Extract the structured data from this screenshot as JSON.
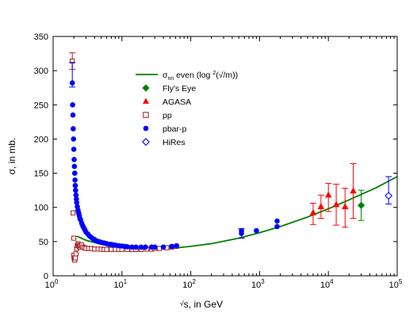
{
  "chart_data": {
    "type": "scatter",
    "x_scale": "log",
    "xlim": [
      1,
      100000
    ],
    "ylim": [
      0,
      350
    ],
    "x_ticks": [
      {
        "value": 1,
        "base": "10",
        "exp": "0"
      },
      {
        "value": 10,
        "base": "10",
        "exp": "1"
      },
      {
        "value": 100,
        "base": "10",
        "exp": "2"
      },
      {
        "value": 1000,
        "base": "10",
        "exp": "3"
      },
      {
        "value": 10000,
        "base": "10",
        "exp": "4"
      },
      {
        "value": 100000,
        "base": "10",
        "exp": "5"
      }
    ],
    "y_ticks": [
      0,
      50,
      100,
      150,
      200,
      250,
      300,
      350
    ],
    "xlabel": {
      "root": "√",
      "text": "s, in GeV"
    },
    "ylabel": "σ, in mb.",
    "grid": false,
    "legend_position": "top-center",
    "series": [
      {
        "name": "σₙₙ even (log ²(√/m))",
        "legend": {
          "sigma": "σ",
          "sub": "nn",
          "mid": " even (log ",
          "sup": "2",
          "end": "(√/m))"
        },
        "kind": "line",
        "color": "#008000",
        "x": [
          2.2,
          3,
          4,
          5,
          7,
          10,
          15,
          20,
          30,
          50,
          100,
          200,
          500,
          1000,
          2000,
          5000,
          10000,
          20000,
          50000,
          100000
        ],
        "y": [
          58,
          52,
          48.5,
          46,
          43,
          40.5,
          39.2,
          38.9,
          39,
          40,
          43,
          47,
          55,
          63,
          72,
          86,
          98,
          111,
          129,
          145
        ]
      },
      {
        "name": "Fly's Eye",
        "kind": "points",
        "marker": "diamond",
        "filled": true,
        "color": "#008000",
        "error_color": "#008000",
        "x": [
          30000
        ],
        "y": [
          103
        ],
        "yerr": [
          [
            22,
            22
          ]
        ]
      },
      {
        "name": "AGASA",
        "kind": "points",
        "marker": "triangle",
        "filled": true,
        "color": "#ff0000",
        "error_color": "#ff0000",
        "x": [
          6000,
          7800,
          10000,
          13000,
          17500,
          23000
        ],
        "y": [
          92,
          101,
          118,
          104,
          101,
          124
        ],
        "yerr": [
          [
            17,
            14
          ],
          [
            17,
            17
          ],
          [
            24,
            17
          ],
          [
            30,
            30
          ],
          [
            30,
            27
          ],
          [
            40,
            40
          ]
        ]
      },
      {
        "name": "pp",
        "kind": "points",
        "marker": "square",
        "filled": false,
        "color": "#a52a2a",
        "error_color": "#a52a2a",
        "x": [
          1.9,
          1.95,
          2.0,
          2.0,
          2.02,
          2.05,
          2.07,
          2.1,
          2.15,
          2.2,
          2.25,
          2.3,
          2.35,
          2.4,
          2.45,
          2.5,
          2.6,
          2.7,
          2.85,
          3.0,
          3.3,
          3.6,
          4.0,
          4.5,
          5.0,
          5.5,
          6.0,
          7.0,
          8.0,
          9.0,
          10.0,
          12.0,
          14.0,
          16.0,
          19.0,
          23.0,
          27.0,
          30.0,
          35.0,
          45.0,
          53.0,
          62.0
        ],
        "y": [
          314,
          92,
          55,
          30,
          26,
          24,
          23,
          26,
          32,
          40,
          44,
          47,
          45,
          43,
          42,
          44,
          45,
          42,
          41,
          40,
          40,
          40,
          39,
          39,
          39,
          38.5,
          38.5,
          38.5,
          38.5,
          38.5,
          38.5,
          38.5,
          38.5,
          38.5,
          38.5,
          39,
          39,
          40,
          40,
          41,
          42,
          43
        ],
        "yerr": [
          [
            12,
            12
          ]
        ]
      },
      {
        "name": "pbar-p",
        "kind": "points",
        "marker": "circle",
        "filled": true,
        "color": "#0000ff",
        "error_color": "#0000ff",
        "x": [
          1.9,
          1.92,
          1.94,
          1.96,
          1.98,
          2.0,
          2.02,
          2.04,
          2.06,
          2.08,
          2.1,
          2.12,
          2.15,
          2.18,
          2.2,
          2.25,
          2.3,
          2.35,
          2.4,
          2.45,
          2.5,
          2.6,
          2.7,
          2.8,
          2.9,
          3.0,
          3.2,
          3.4,
          3.6,
          3.8,
          4.0,
          4.3,
          4.6,
          5.0,
          5.5,
          6.0,
          6.5,
          7.0,
          7.5,
          8.0,
          9.0,
          10.0,
          11.0,
          12.0,
          14.0,
          16.0,
          19.0,
          22.0,
          27.0,
          30.0,
          40.0,
          53.0,
          62.0,
          546.0,
          546.0,
          900.0,
          1800.0,
          1800.0
        ],
        "y": [
          282,
          250,
          235,
          215,
          200,
          185,
          170,
          160,
          150,
          140,
          132,
          125,
          118,
          112,
          107,
          101,
          96,
          92,
          88,
          84,
          82,
          77,
          73,
          70,
          67,
          64,
          61,
          58,
          56,
          54,
          53,
          51,
          50,
          49,
          48,
          47,
          46,
          46,
          45,
          45,
          44,
          43.5,
          43,
          42.5,
          42,
          42,
          42,
          42,
          42,
          42,
          42,
          43,
          44,
          62,
          66,
          66,
          72,
          80
        ],
        "yerr": [
          [
            6,
            30
          ],
          [
            0,
            0
          ],
          [
            0,
            0
          ],
          [
            0,
            0
          ],
          [
            0,
            0
          ],
          [
            0,
            0
          ],
          [
            0,
            0
          ],
          [
            0,
            0
          ],
          [
            0,
            0
          ],
          [
            0,
            0
          ],
          [
            0,
            0
          ],
          [
            0,
            0
          ],
          [
            0,
            0
          ],
          [
            0,
            0
          ],
          [
            0,
            0
          ],
          [
            0,
            0
          ],
          [
            0,
            0
          ],
          [
            0,
            0
          ],
          [
            0,
            0
          ],
          [
            0,
            0
          ],
          [
            0,
            0
          ],
          [
            0,
            0
          ],
          [
            0,
            0
          ],
          [
            0,
            0
          ],
          [
            0,
            0
          ],
          [
            0,
            0
          ],
          [
            0,
            0
          ],
          [
            0,
            0
          ],
          [
            0,
            0
          ],
          [
            0,
            0
          ],
          [
            0,
            0
          ],
          [
            0,
            0
          ],
          [
            0,
            0
          ],
          [
            0,
            0
          ],
          [
            0,
            0
          ],
          [
            0,
            0
          ],
          [
            0,
            0
          ],
          [
            0,
            0
          ],
          [
            0,
            0
          ],
          [
            0,
            0
          ],
          [
            0,
            0
          ],
          [
            0,
            0
          ],
          [
            0,
            0
          ],
          [
            0,
            0
          ],
          [
            0,
            0
          ],
          [
            0,
            0
          ],
          [
            0,
            0
          ],
          [
            0,
            0
          ],
          [
            0,
            0
          ],
          [
            0,
            0
          ],
          [
            0,
            0
          ],
          [
            0,
            0
          ],
          [
            0,
            0
          ],
          [
            7,
            7
          ],
          [
            0,
            0
          ],
          [
            0,
            0
          ],
          [
            0,
            0
          ],
          [
            0,
            0
          ]
        ]
      },
      {
        "name": "HiRes",
        "kind": "points",
        "marker": "diamond",
        "filled": false,
        "color": "#0000ff",
        "error_color": "#0000ff",
        "x": [
          75000
        ],
        "y": [
          117
        ],
        "yerr": [
          [
            12,
            28
          ]
        ]
      }
    ]
  }
}
